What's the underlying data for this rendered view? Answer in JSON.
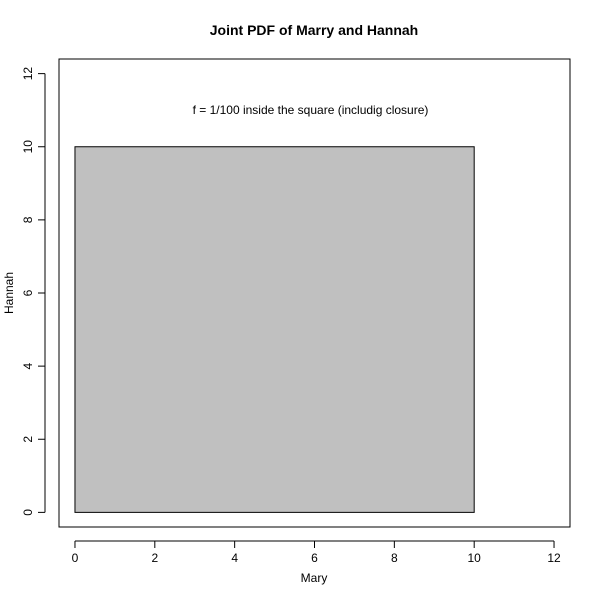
{
  "chart_data": {
    "type": "area",
    "title": "Joint PDF of Marry and Hannah",
    "xlabel": "Mary",
    "ylabel": "Hannah",
    "xlim": [
      -0.4,
      12.4
    ],
    "ylim": [
      -0.4,
      12.4
    ],
    "xticks": [
      0,
      2,
      4,
      6,
      8,
      10,
      12
    ],
    "yticks": [
      0,
      2,
      4,
      6,
      8,
      10,
      12
    ],
    "xtick_labels": [
      "0",
      "2",
      "4",
      "6",
      "8",
      "10",
      "12"
    ],
    "ytick_labels": [
      "0",
      "2",
      "4",
      "6",
      "8",
      "10",
      "12"
    ],
    "region": {
      "x0": 0,
      "x1": 10,
      "y0": 0,
      "y1": 10,
      "fill": "#c0c0c0",
      "stroke": "#000000"
    },
    "annotation": {
      "text": "f = 1/100 inside the square (includig closure)",
      "x": 6,
      "y": 11
    },
    "grid": false,
    "legend": "none"
  }
}
